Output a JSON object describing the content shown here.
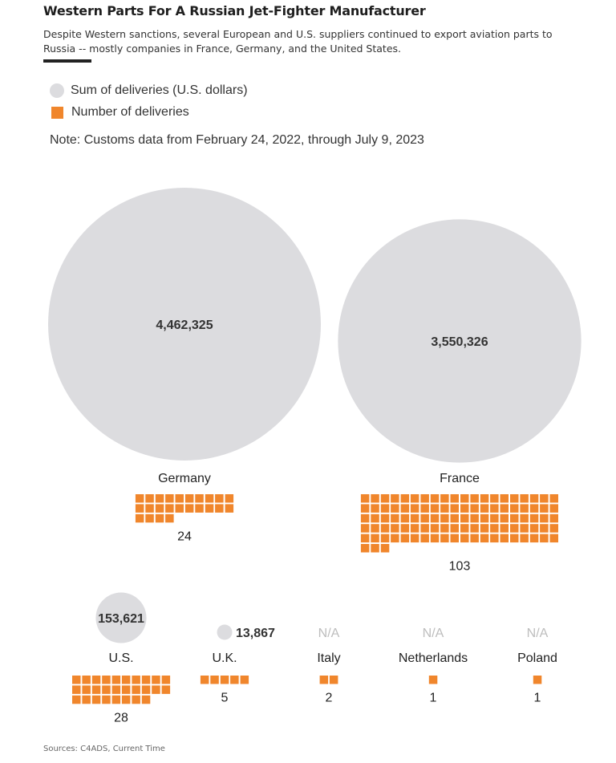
{
  "header": {
    "title": "Western Parts For A Russian Jet-Fighter Manufacturer",
    "subtitle": "Despite Western sanctions, several European and U.S. suppliers continued to export aviation parts to Russia -- mostly companies in France, Germany, and the United States."
  },
  "legend": {
    "sum_label": "Sum of deliveries (U.S. dollars)",
    "count_label": "Number of deliveries"
  },
  "note": "Note: Customs data from February 24, 2022, through July 9, 2023",
  "sources": "Sources: C4ADS, Current Time",
  "colors": {
    "bubble": "#dcdcdf",
    "square": "#f0862c",
    "na_text": "#bdbdbd"
  },
  "chart_data": {
    "type": "bubble-and-waffle",
    "title": "Western Parts For A Russian Jet-Fighter Manufacturer",
    "categories": [
      "Germany",
      "France",
      "U.S.",
      "U.K.",
      "Italy",
      "Netherlands",
      "Poland"
    ],
    "series": [
      {
        "name": "Sum of deliveries (U.S. dollars)",
        "values": [
          4462325,
          3550326,
          153621,
          13867,
          null,
          null,
          null
        ],
        "display": [
          "4,462,325",
          "3,550,326",
          "153,621",
          "13,867",
          "N/A",
          "N/A",
          "N/A"
        ]
      },
      {
        "name": "Number of deliveries",
        "values": [
          24,
          103,
          28,
          5,
          2,
          1,
          1
        ],
        "display": [
          "24",
          "103",
          "28",
          "5",
          "2",
          "1",
          "1"
        ]
      }
    ]
  }
}
